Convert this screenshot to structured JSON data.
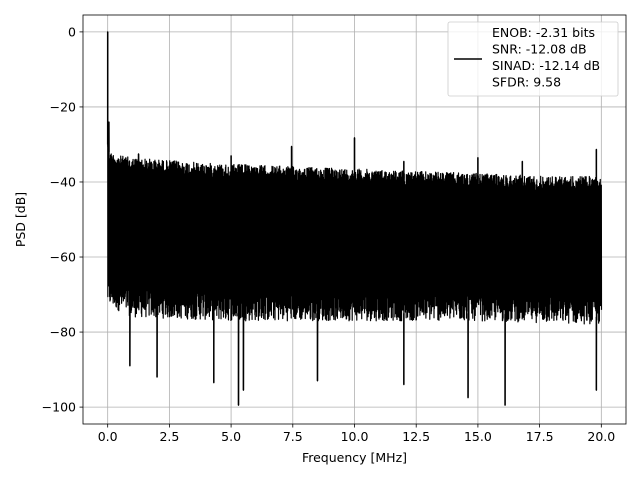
{
  "chart_data": {
    "type": "line",
    "xlabel": "Frequency [MHz]",
    "ylabel": "PSD [dB]",
    "xlim": [
      -1.0,
      21.0
    ],
    "ylim": [
      -104.5,
      4.5
    ],
    "xticks": [
      0.0,
      2.5,
      5.0,
      7.5,
      10.0,
      12.5,
      15.0,
      17.5,
      20.0
    ],
    "xtick_labels": [
      "0.0",
      "2.5",
      "5.0",
      "7.5",
      "10.0",
      "12.5",
      "15.0",
      "17.5",
      "20.0"
    ],
    "yticks": [
      0,
      -20,
      -40,
      -60,
      -80,
      -100
    ],
    "ytick_labels": [
      "0",
      "−20",
      "−40",
      "−60",
      "−80",
      "−100"
    ],
    "grid": true,
    "legend_position": "top-right",
    "legend_lines": [
      "ENOB: -2.31 bits",
      "SNR: -12.08 dB",
      "SINAD: -12.14 dB",
      "SFDR: 9.58"
    ],
    "series": [
      {
        "color": "#000000",
        "x_start": 0.0,
        "x_end": 20.0,
        "noise_upper_envelope_db": [
          [
            0.0,
            -28
          ],
          [
            0.1,
            -32
          ],
          [
            0.5,
            -33
          ],
          [
            1.0,
            -33.5
          ],
          [
            2.0,
            -34
          ],
          [
            4.0,
            -35
          ],
          [
            6.0,
            -35.5
          ],
          [
            8.0,
            -36
          ],
          [
            10.0,
            -36.5
          ],
          [
            12.0,
            -37
          ],
          [
            14.0,
            -37.5
          ],
          [
            16.0,
            -38
          ],
          [
            18.0,
            -38.5
          ],
          [
            20.0,
            -38.5
          ]
        ],
        "noise_lower_envelope_db": [
          [
            0.0,
            -73
          ],
          [
            1.0,
            -76
          ],
          [
            5.0,
            -77
          ],
          [
            10.0,
            -77
          ],
          [
            15.0,
            -77
          ],
          [
            20.0,
            -78
          ]
        ],
        "peaks": [
          {
            "x": 0.0,
            "y": 0.0
          },
          {
            "x": 0.05,
            "y": -24
          },
          {
            "x": 1.25,
            "y": -32.5
          },
          {
            "x": 5.0,
            "y": -33
          },
          {
            "x": 7.45,
            "y": -30.5
          },
          {
            "x": 10.0,
            "y": -28.2
          },
          {
            "x": 12.0,
            "y": -34.5
          },
          {
            "x": 15.0,
            "y": -33.5
          },
          {
            "x": 16.8,
            "y": -34.5
          },
          {
            "x": 19.8,
            "y": -31.3
          }
        ],
        "dips": [
          {
            "x": 0.9,
            "y": -89
          },
          {
            "x": 2.0,
            "y": -92
          },
          {
            "x": 4.3,
            "y": -93.5
          },
          {
            "x": 5.3,
            "y": -99.5
          },
          {
            "x": 5.5,
            "y": -95.5
          },
          {
            "x": 8.5,
            "y": -93
          },
          {
            "x": 12.0,
            "y": -94
          },
          {
            "x": 14.6,
            "y": -97.5
          },
          {
            "x": 16.1,
            "y": -99.5
          },
          {
            "x": 19.8,
            "y": -95.5
          }
        ]
      }
    ]
  }
}
